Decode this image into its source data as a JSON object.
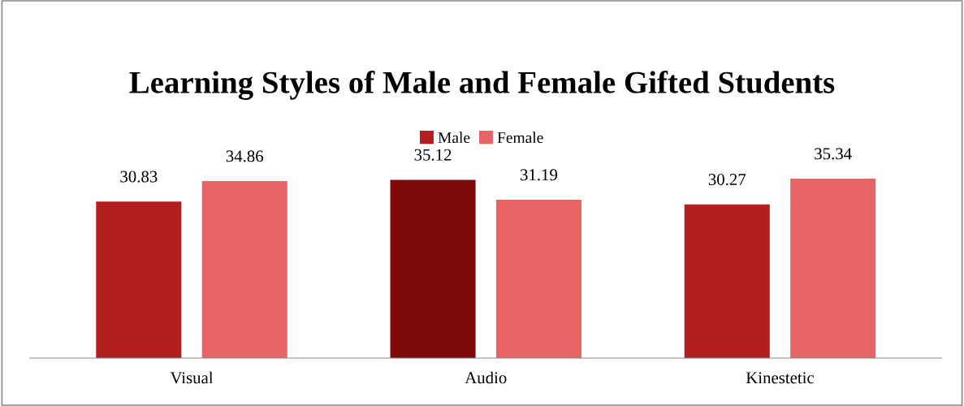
{
  "chart_data": {
    "type": "bar",
    "title": "Learning Styles of Male and Female Gifted Students",
    "categories": [
      "Visual",
      "Audio",
      "Kinestetic"
    ],
    "series": [
      {
        "name": "Male",
        "color": "#b41e1e",
        "colors": [
          "#b41e1e",
          "#7e0909",
          "#b41e1e"
        ],
        "values": [
          30.83,
          35.12,
          30.27
        ]
      },
      {
        "name": "Female",
        "color": "#e86464",
        "values": [
          34.86,
          31.19,
          35.34
        ]
      }
    ],
    "tick_labels": "x",
    "data_labels": true,
    "legend": "top",
    "grid": false
  }
}
